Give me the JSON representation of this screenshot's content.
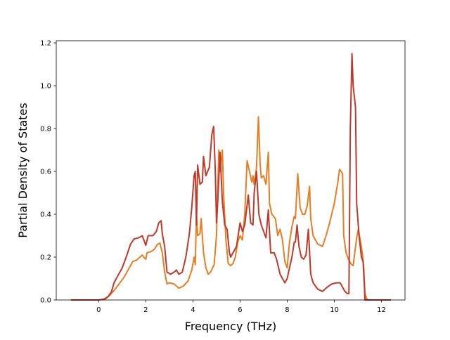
{
  "chart_data": {
    "type": "line",
    "xlabel": "Frequency (THz)",
    "ylabel": "Partial Density of States",
    "xlim": [
      -1.8,
      13.0
    ],
    "ylim": [
      0.0,
      1.21
    ],
    "xticks": [
      0,
      2,
      4,
      6,
      8,
      10,
      12
    ],
    "xtick_labels": [
      "0",
      "2",
      "4",
      "6",
      "8",
      "10",
      "12"
    ],
    "yticks": [
      0.0,
      0.2,
      0.4,
      0.6,
      0.8,
      1.0,
      1.2
    ],
    "ytick_labels": [
      "0.0",
      "0.2",
      "0.4",
      "0.6",
      "0.8",
      "1.0",
      "1.2"
    ],
    "grid": false,
    "legend": "none",
    "series": [
      {
        "color": "#e67e22",
        "points": [
          [
            -1.18,
            0.0
          ],
          [
            0.0,
            0.0
          ],
          [
            0.3,
            0.005
          ],
          [
            0.5,
            0.025
          ],
          [
            0.7,
            0.05
          ],
          [
            0.9,
            0.08
          ],
          [
            1.1,
            0.11
          ],
          [
            1.3,
            0.15
          ],
          [
            1.45,
            0.18
          ],
          [
            1.6,
            0.185
          ],
          [
            1.75,
            0.2
          ],
          [
            1.85,
            0.21
          ],
          [
            1.95,
            0.195
          ],
          [
            2.0,
            0.19
          ],
          [
            2.05,
            0.22
          ],
          [
            2.2,
            0.225
          ],
          [
            2.35,
            0.235
          ],
          [
            2.5,
            0.26
          ],
          [
            2.6,
            0.265
          ],
          [
            2.7,
            0.22
          ],
          [
            2.8,
            0.13
          ],
          [
            2.9,
            0.075
          ],
          [
            3.0,
            0.08
          ],
          [
            3.2,
            0.075
          ],
          [
            3.3,
            0.065
          ],
          [
            3.4,
            0.055
          ],
          [
            3.6,
            0.065
          ],
          [
            3.8,
            0.09
          ],
          [
            3.95,
            0.14
          ],
          [
            4.05,
            0.2
          ],
          [
            4.1,
            0.165
          ],
          [
            4.15,
            0.4
          ],
          [
            4.2,
            0.3
          ],
          [
            4.3,
            0.31
          ],
          [
            4.35,
            0.38
          ],
          [
            4.45,
            0.22
          ],
          [
            4.55,
            0.15
          ],
          [
            4.65,
            0.12
          ],
          [
            4.75,
            0.13
          ],
          [
            4.9,
            0.165
          ],
          [
            5.0,
            0.3
          ],
          [
            5.1,
            0.7
          ],
          [
            5.15,
            0.6
          ],
          [
            5.25,
            0.7
          ],
          [
            5.3,
            0.5
          ],
          [
            5.4,
            0.28
          ],
          [
            5.5,
            0.17
          ],
          [
            5.6,
            0.16
          ],
          [
            5.7,
            0.17
          ],
          [
            5.8,
            0.2
          ],
          [
            5.9,
            0.27
          ],
          [
            6.0,
            0.3
          ],
          [
            6.1,
            0.28
          ],
          [
            6.2,
            0.4
          ],
          [
            6.3,
            0.65
          ],
          [
            6.4,
            0.6
          ],
          [
            6.5,
            0.55
          ],
          [
            6.55,
            0.58
          ],
          [
            6.6,
            0.54
          ],
          [
            6.7,
            0.62
          ],
          [
            6.78,
            0.855
          ],
          [
            6.85,
            0.64
          ],
          [
            6.9,
            0.57
          ],
          [
            7.0,
            0.58
          ],
          [
            7.1,
            0.54
          ],
          [
            7.2,
            0.69
          ],
          [
            7.25,
            0.45
          ],
          [
            7.35,
            0.4
          ],
          [
            7.5,
            0.38
          ],
          [
            7.6,
            0.3
          ],
          [
            7.7,
            0.33
          ],
          [
            7.8,
            0.28
          ],
          [
            7.9,
            0.18
          ],
          [
            8.0,
            0.15
          ],
          [
            8.1,
            0.27
          ],
          [
            8.2,
            0.34
          ],
          [
            8.3,
            0.39
          ],
          [
            8.35,
            0.38
          ],
          [
            8.45,
            0.59
          ],
          [
            8.55,
            0.43
          ],
          [
            8.65,
            0.4
          ],
          [
            8.75,
            0.4
          ],
          [
            8.85,
            0.44
          ],
          [
            8.95,
            0.53
          ],
          [
            9.0,
            0.38
          ],
          [
            9.1,
            0.3
          ],
          [
            9.3,
            0.26
          ],
          [
            9.5,
            0.25
          ],
          [
            9.65,
            0.3
          ],
          [
            9.8,
            0.36
          ],
          [
            10.0,
            0.45
          ],
          [
            10.15,
            0.55
          ],
          [
            10.22,
            0.61
          ],
          [
            10.35,
            0.59
          ],
          [
            10.4,
            0.3
          ],
          [
            10.5,
            0.22
          ],
          [
            10.6,
            0.19
          ],
          [
            10.7,
            0.17
          ],
          [
            10.8,
            0.16
          ],
          [
            10.88,
            0.23
          ],
          [
            10.95,
            0.29
          ],
          [
            11.02,
            0.33
          ],
          [
            11.1,
            0.28
          ],
          [
            11.2,
            0.21
          ],
          [
            11.25,
            0.15
          ],
          [
            11.3,
            0.03
          ],
          [
            11.4,
            0.0
          ],
          [
            12.4,
            0.0
          ]
        ]
      },
      {
        "color": "#c0392b",
        "points": [
          [
            -1.18,
            0.0
          ],
          [
            0.0,
            0.0
          ],
          [
            0.2,
            0.003
          ],
          [
            0.4,
            0.015
          ],
          [
            0.55,
            0.04
          ],
          [
            0.65,
            0.08
          ],
          [
            0.8,
            0.11
          ],
          [
            1.0,
            0.15
          ],
          [
            1.2,
            0.21
          ],
          [
            1.35,
            0.26
          ],
          [
            1.5,
            0.285
          ],
          [
            1.7,
            0.29
          ],
          [
            1.85,
            0.3
          ],
          [
            2.0,
            0.255
          ],
          [
            2.1,
            0.3
          ],
          [
            2.3,
            0.3
          ],
          [
            2.45,
            0.32
          ],
          [
            2.55,
            0.36
          ],
          [
            2.65,
            0.37
          ],
          [
            2.7,
            0.31
          ],
          [
            2.8,
            0.25
          ],
          [
            2.9,
            0.13
          ],
          [
            3.05,
            0.12
          ],
          [
            3.2,
            0.13
          ],
          [
            3.3,
            0.14
          ],
          [
            3.4,
            0.12
          ],
          [
            3.55,
            0.13
          ],
          [
            3.7,
            0.2
          ],
          [
            3.85,
            0.31
          ],
          [
            3.95,
            0.43
          ],
          [
            4.05,
            0.58
          ],
          [
            4.1,
            0.6
          ],
          [
            4.15,
            0.35
          ],
          [
            4.2,
            0.63
          ],
          [
            4.3,
            0.54
          ],
          [
            4.4,
            0.55
          ],
          [
            4.45,
            0.67
          ],
          [
            4.55,
            0.58
          ],
          [
            4.7,
            0.62
          ],
          [
            4.8,
            0.77
          ],
          [
            4.88,
            0.81
          ],
          [
            4.95,
            0.6
          ],
          [
            5.0,
            0.36
          ],
          [
            5.05,
            0.45
          ],
          [
            5.15,
            0.69
          ],
          [
            5.25,
            0.46
          ],
          [
            5.35,
            0.35
          ],
          [
            5.45,
            0.33
          ],
          [
            5.55,
            0.22
          ],
          [
            5.6,
            0.2
          ],
          [
            5.7,
            0.22
          ],
          [
            5.85,
            0.25
          ],
          [
            6.0,
            0.36
          ],
          [
            6.1,
            0.32
          ],
          [
            6.2,
            0.35
          ],
          [
            6.35,
            0.49
          ],
          [
            6.45,
            0.36
          ],
          [
            6.55,
            0.35
          ],
          [
            6.6,
            0.5
          ],
          [
            6.7,
            0.6
          ],
          [
            6.8,
            0.4
          ],
          [
            6.9,
            0.35
          ],
          [
            7.0,
            0.32
          ],
          [
            7.1,
            0.29
          ],
          [
            7.2,
            0.42
          ],
          [
            7.3,
            0.22
          ],
          [
            7.45,
            0.22
          ],
          [
            7.55,
            0.19
          ],
          [
            7.7,
            0.12
          ],
          [
            7.8,
            0.1
          ],
          [
            7.9,
            0.08
          ],
          [
            8.0,
            0.1
          ],
          [
            8.1,
            0.15
          ],
          [
            8.2,
            0.2
          ],
          [
            8.3,
            0.27
          ],
          [
            8.35,
            0.27
          ],
          [
            8.42,
            0.35
          ],
          [
            8.5,
            0.25
          ],
          [
            8.6,
            0.2
          ],
          [
            8.7,
            0.19
          ],
          [
            8.8,
            0.21
          ],
          [
            8.9,
            0.33
          ],
          [
            9.0,
            0.12
          ],
          [
            9.1,
            0.08
          ],
          [
            9.3,
            0.05
          ],
          [
            9.5,
            0.04
          ],
          [
            9.7,
            0.06
          ],
          [
            9.9,
            0.075
          ],
          [
            10.1,
            0.08
          ],
          [
            10.25,
            0.08
          ],
          [
            10.35,
            0.06
          ],
          [
            10.45,
            0.04
          ],
          [
            10.55,
            0.03
          ],
          [
            10.62,
            0.03
          ],
          [
            10.68,
            0.8
          ],
          [
            10.75,
            1.15
          ],
          [
            10.8,
            1.0
          ],
          [
            10.9,
            0.9
          ],
          [
            10.95,
            0.45
          ],
          [
            11.05,
            0.3
          ],
          [
            11.15,
            0.2
          ],
          [
            11.22,
            0.18
          ],
          [
            11.28,
            0.06
          ],
          [
            11.3,
            0.0
          ],
          [
            12.4,
            0.0
          ]
        ]
      }
    ]
  }
}
